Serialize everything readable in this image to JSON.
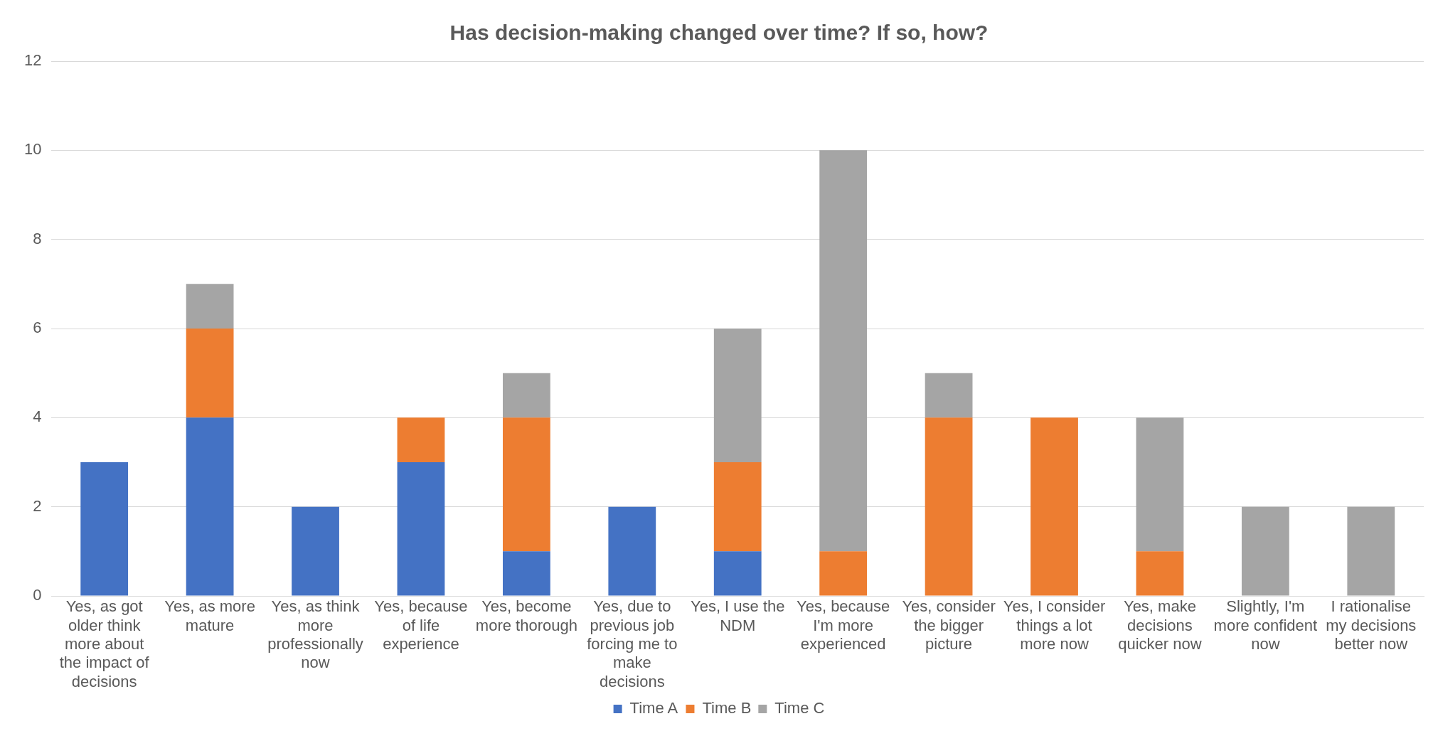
{
  "chart_data": {
    "type": "bar",
    "title": "Has decision-making changed over time? If so, how?",
    "categories": [
      "Yes, as got older think more about the impact of decisions",
      "Yes, as more mature",
      "Yes, as think more professionally now",
      "Yes, because of life experience",
      "Yes, become more thorough",
      "Yes, due to previous job forcing me to make decisions",
      "Yes, I use the NDM",
      "Yes, because I'm more experienced",
      "Yes, consider the bigger picture",
      "Yes, I consider things a lot more now",
      "Yes, make decisions quicker now",
      "Slightly, I'm more confident now",
      "I rationalise my decisions better now"
    ],
    "series": [
      {
        "name": "Time A",
        "color": "#4472c4",
        "values": [
          3,
          4,
          2,
          3,
          1,
          2,
          1,
          0,
          0,
          0,
          0,
          0,
          0
        ]
      },
      {
        "name": "Time B",
        "color": "#ed7d31",
        "values": [
          0,
          2,
          0,
          1,
          3,
          0,
          2,
          1,
          4,
          4,
          1,
          0,
          0
        ]
      },
      {
        "name": "Time C",
        "color": "#a5a5a5",
        "values": [
          0,
          1,
          0,
          0,
          1,
          0,
          3,
          9,
          1,
          0,
          3,
          2,
          2
        ]
      }
    ],
    "stacked": true,
    "ylim": [
      0,
      12
    ],
    "yticks": [
      0,
      2,
      4,
      6,
      8,
      10,
      12
    ],
    "grid": "y",
    "legend": "bottom"
  }
}
